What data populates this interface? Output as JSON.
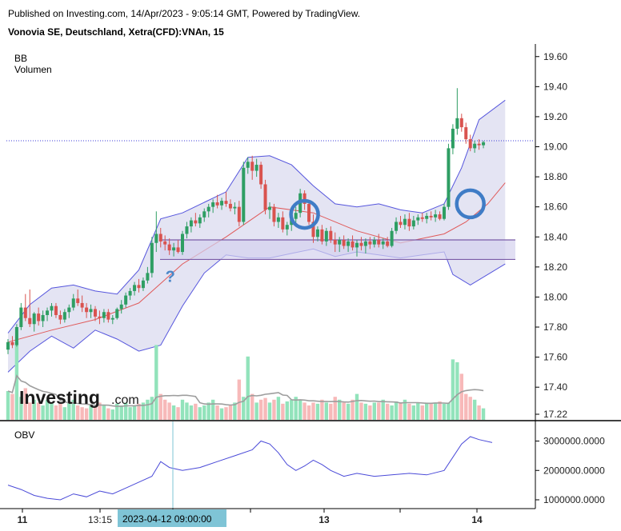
{
  "header": {
    "published": "Published on Investing.com, 14/Apr/2023 - 9:05:14 GMT, Powered by TradingView.",
    "symbol": "Vonovia SE, Deutschland, Xetra(CFD):VNAn, 15"
  },
  "colors": {
    "up": "#2e9e63",
    "down": "#d9534f",
    "band_fill": "#e4e4f3",
    "band_line": "#5555dd",
    "basis_line": "#e05a5a",
    "vol_up": "#92e3bb",
    "vol_down": "#f7b9b9",
    "vol_ma": "#9e9e9e",
    "obv_line": "#4a4ad8",
    "zone_fill": "#d4d2ee",
    "zone_line": "#7b5ca8",
    "circle": "#3f7cc6",
    "crosshair_bg": "#7fc4d6"
  },
  "logo": {
    "main": "Investing",
    "sub": ".com"
  },
  "annotations": {
    "question": "?"
  },
  "chart_data": [
    {
      "type": "candlestick",
      "indicators": [
        "BB",
        "Volumen"
      ],
      "y_ticks": [
        "19.60",
        "19.40",
        "19.20",
        "19.00",
        "18.80",
        "18.60",
        "18.40",
        "18.20",
        "18.00",
        "17.80",
        "17.60",
        "17.40",
        "17.22"
      ],
      "ylim": [
        17.22,
        19.62
      ],
      "x_ticks": [
        "11",
        "13:15",
        "13",
        "14"
      ],
      "crosshair_label": "2023-04-12 09:00:00",
      "last_price": 19.04,
      "zone": [
        18.25,
        18.38
      ],
      "ohlc": [
        [
          17.65,
          17.72,
          17.62,
          17.7
        ],
        [
          17.7,
          17.74,
          17.66,
          17.68
        ],
        [
          17.68,
          17.82,
          17.67,
          17.8
        ],
        [
          17.8,
          17.96,
          17.78,
          17.93
        ],
        [
          17.93,
          18.02,
          17.84,
          17.86
        ],
        [
          17.86,
          18.05,
          17.8,
          17.82
        ],
        [
          17.82,
          17.9,
          17.77,
          17.89
        ],
        [
          17.89,
          17.93,
          17.81,
          17.84
        ],
        [
          17.84,
          17.91,
          17.8,
          17.88
        ],
        [
          17.88,
          17.93,
          17.84,
          17.91
        ],
        [
          17.91,
          17.96,
          17.87,
          17.94
        ],
        [
          17.94,
          17.96,
          17.86,
          17.88
        ],
        [
          17.88,
          17.91,
          17.82,
          17.85
        ],
        [
          17.85,
          17.92,
          17.83,
          17.9
        ],
        [
          17.9,
          17.95,
          17.86,
          17.93
        ],
        [
          17.93,
          18.02,
          17.91,
          17.99
        ],
        [
          17.99,
          18.05,
          17.94,
          17.96
        ],
        [
          17.96,
          18.01,
          17.9,
          17.93
        ],
        [
          17.93,
          17.96,
          17.86,
          17.9
        ],
        [
          17.9,
          17.95,
          17.86,
          17.92
        ],
        [
          17.92,
          17.94,
          17.84,
          17.87
        ],
        [
          17.87,
          17.91,
          17.82,
          17.86
        ],
        [
          17.86,
          17.92,
          17.83,
          17.9
        ],
        [
          17.9,
          17.92,
          17.83,
          17.85
        ],
        [
          17.85,
          17.88,
          17.82,
          17.86
        ],
        [
          17.86,
          17.93,
          17.85,
          17.92
        ],
        [
          17.92,
          17.98,
          17.89,
          17.95
        ],
        [
          17.95,
          18.03,
          17.93,
          18.01
        ],
        [
          18.01,
          18.06,
          17.98,
          18.04
        ],
        [
          18.04,
          18.1,
          18.01,
          18.08
        ],
        [
          18.08,
          18.12,
          18.03,
          18.06
        ],
        [
          18.06,
          18.13,
          18.04,
          18.11
        ],
        [
          18.11,
          18.2,
          18.09,
          18.16
        ],
        [
          18.16,
          18.4,
          18.13,
          18.36
        ],
        [
          18.36,
          18.57,
          18.3,
          18.42
        ],
        [
          18.42,
          18.46,
          18.33,
          18.37
        ],
        [
          18.37,
          18.41,
          18.31,
          18.35
        ],
        [
          18.35,
          18.39,
          18.28,
          18.31
        ],
        [
          18.31,
          18.36,
          18.27,
          18.33
        ],
        [
          18.33,
          18.38,
          18.29,
          18.3
        ],
        [
          18.3,
          18.44,
          18.28,
          18.42
        ],
        [
          18.42,
          18.5,
          18.39,
          18.47
        ],
        [
          18.47,
          18.53,
          18.43,
          18.51
        ],
        [
          18.51,
          18.56,
          18.47,
          18.49
        ],
        [
          18.49,
          18.55,
          18.46,
          18.53
        ],
        [
          18.53,
          18.59,
          18.5,
          18.57
        ],
        [
          18.57,
          18.62,
          18.53,
          18.6
        ],
        [
          18.6,
          18.65,
          18.56,
          18.63
        ],
        [
          18.63,
          18.68,
          18.59,
          18.61
        ],
        [
          18.61,
          18.66,
          18.58,
          18.64
        ],
        [
          18.64,
          18.7,
          18.6,
          18.62
        ],
        [
          18.62,
          18.65,
          18.57,
          18.59
        ],
        [
          18.59,
          18.63,
          18.55,
          18.6
        ],
        [
          18.6,
          18.64,
          18.47,
          18.5
        ],
        [
          18.5,
          18.9,
          18.48,
          18.86
        ],
        [
          18.86,
          18.93,
          18.82,
          18.9
        ],
        [
          18.9,
          18.94,
          18.78,
          18.84
        ],
        [
          18.84,
          18.92,
          18.8,
          18.88
        ],
        [
          18.88,
          18.9,
          18.72,
          18.75
        ],
        [
          18.75,
          18.78,
          18.55,
          18.58
        ],
        [
          18.58,
          18.63,
          18.52,
          18.6
        ],
        [
          18.6,
          18.62,
          18.47,
          18.5
        ],
        [
          18.5,
          18.56,
          18.46,
          18.53
        ],
        [
          18.53,
          18.57,
          18.43,
          18.45
        ],
        [
          18.45,
          18.5,
          18.41,
          18.48
        ],
        [
          18.48,
          18.55,
          18.44,
          18.52
        ],
        [
          18.52,
          18.6,
          18.49,
          18.56
        ],
        [
          18.56,
          18.72,
          18.53,
          18.69
        ],
        [
          18.69,
          18.71,
          18.58,
          18.62
        ],
        [
          18.62,
          18.64,
          18.48,
          18.5
        ],
        [
          18.5,
          18.55,
          18.36,
          18.4
        ],
        [
          18.4,
          18.47,
          18.37,
          18.45
        ],
        [
          18.45,
          18.48,
          18.35,
          18.37
        ],
        [
          18.37,
          18.46,
          18.34,
          18.44
        ],
        [
          18.44,
          18.47,
          18.36,
          18.38
        ],
        [
          18.38,
          18.43,
          18.3,
          18.35
        ],
        [
          18.35,
          18.4,
          18.3,
          18.38
        ],
        [
          18.38,
          18.41,
          18.32,
          18.34
        ],
        [
          18.34,
          18.39,
          18.3,
          18.37
        ],
        [
          18.37,
          18.41,
          18.31,
          18.33
        ],
        [
          18.33,
          18.38,
          18.27,
          18.36
        ],
        [
          18.36,
          18.4,
          18.31,
          18.34
        ],
        [
          18.34,
          18.39,
          18.29,
          18.37
        ],
        [
          18.37,
          18.4,
          18.32,
          18.35
        ],
        [
          18.35,
          18.4,
          18.33,
          18.38
        ],
        [
          18.38,
          18.42,
          18.33,
          18.35
        ],
        [
          18.35,
          18.39,
          18.32,
          18.37
        ],
        [
          18.37,
          18.4,
          18.33,
          18.34
        ],
        [
          18.34,
          18.46,
          18.33,
          18.44
        ],
        [
          18.44,
          18.53,
          18.42,
          18.5
        ],
        [
          18.5,
          18.54,
          18.46,
          18.48
        ],
        [
          18.48,
          18.55,
          18.45,
          18.52
        ],
        [
          18.52,
          18.56,
          18.44,
          18.47
        ],
        [
          18.47,
          18.54,
          18.45,
          18.51
        ],
        [
          18.51,
          18.55,
          18.48,
          18.53
        ],
        [
          18.53,
          18.56,
          18.5,
          18.52
        ],
        [
          18.52,
          18.56,
          18.49,
          18.54
        ],
        [
          18.54,
          18.57,
          18.51,
          18.53
        ],
        [
          18.53,
          18.58,
          18.5,
          18.55
        ],
        [
          18.55,
          18.57,
          18.51,
          18.52
        ],
        [
          18.52,
          18.62,
          18.51,
          18.6
        ],
        [
          18.6,
          19.02,
          18.58,
          18.99
        ],
        [
          18.99,
          19.15,
          18.95,
          19.12
        ],
        [
          19.12,
          19.39,
          19.08,
          19.19
        ],
        [
          19.19,
          19.22,
          19.1,
          19.13
        ],
        [
          19.13,
          19.16,
          19.02,
          19.05
        ],
        [
          19.05,
          19.08,
          18.97,
          18.99
        ],
        [
          18.99,
          19.04,
          18.96,
          19.02
        ],
        [
          19.02,
          19.05,
          18.98,
          19.01
        ],
        [
          19.01,
          19.04,
          18.99,
          19.03
        ]
      ],
      "volume": [
        50,
        45,
        135,
        40,
        55,
        30,
        35,
        30,
        25,
        35,
        30,
        25,
        28,
        22,
        30,
        35,
        25,
        22,
        20,
        25,
        22,
        30,
        25,
        20,
        18,
        28,
        25,
        30,
        22,
        25,
        28,
        30,
        35,
        40,
        130,
        45,
        35,
        30,
        25,
        22,
        35,
        30,
        25,
        28,
        22,
        25,
        30,
        35,
        25,
        20,
        22,
        25,
        30,
        70,
        40,
        110,
        45,
        30,
        35,
        38,
        30,
        35,
        40,
        28,
        32,
        35,
        40,
        35,
        30,
        25,
        30,
        28,
        35,
        30,
        28,
        40,
        35,
        30,
        28,
        35,
        45,
        30,
        28,
        25,
        30,
        30,
        35,
        28,
        25,
        32,
        30,
        35,
        28,
        25,
        30,
        25,
        30,
        28,
        30,
        32,
        28,
        30,
        105,
        100,
        80,
        45,
        40,
        35,
        25,
        20
      ],
      "bb_basis_points": [
        [
          0,
          17.7
        ],
        [
          10,
          17.78
        ],
        [
          20,
          17.85
        ],
        [
          30,
          17.96
        ],
        [
          40,
          18.22
        ],
        [
          50,
          18.4
        ],
        [
          60,
          18.6
        ],
        [
          70,
          18.56
        ],
        [
          80,
          18.44
        ],
        [
          90,
          18.36
        ],
        [
          100,
          18.42
        ],
        [
          105,
          18.5
        ],
        [
          110,
          18.62
        ],
        [
          114,
          18.76
        ]
      ],
      "bb_upper_points": [
        [
          0,
          17.76
        ],
        [
          5,
          17.95
        ],
        [
          10,
          18.06
        ],
        [
          15,
          18.08
        ],
        [
          20,
          18.04
        ],
        [
          25,
          18.02
        ],
        [
          30,
          18.18
        ],
        [
          35,
          18.52
        ],
        [
          40,
          18.56
        ],
        [
          45,
          18.63
        ],
        [
          50,
          18.7
        ],
        [
          55,
          18.93
        ],
        [
          60,
          18.94
        ],
        [
          65,
          18.88
        ],
        [
          70,
          18.74
        ],
        [
          75,
          18.62
        ],
        [
          80,
          18.6
        ],
        [
          85,
          18.62
        ],
        [
          90,
          18.58
        ],
        [
          95,
          18.56
        ],
        [
          100,
          18.62
        ],
        [
          104,
          18.86
        ],
        [
          108,
          19.18
        ],
        [
          114,
          19.31
        ]
      ],
      "bb_lower_points": [
        [
          0,
          17.5
        ],
        [
          5,
          17.64
        ],
        [
          10,
          17.74
        ],
        [
          15,
          17.66
        ],
        [
          20,
          17.78
        ],
        [
          25,
          17.72
        ],
        [
          30,
          17.64
        ],
        [
          35,
          17.68
        ],
        [
          40,
          17.94
        ],
        [
          45,
          18.16
        ],
        [
          50,
          18.28
        ],
        [
          55,
          18.26
        ],
        [
          60,
          18.26
        ],
        [
          65,
          18.29
        ],
        [
          70,
          18.32
        ],
        [
          75,
          18.27
        ],
        [
          80,
          18.3
        ],
        [
          85,
          18.28
        ],
        [
          90,
          18.26
        ],
        [
          95,
          18.28
        ],
        [
          100,
          18.3
        ],
        [
          102,
          18.15
        ],
        [
          106,
          18.08
        ],
        [
          114,
          18.22
        ]
      ],
      "circle_annotations": [
        [
          68,
          18.55
        ],
        [
          106,
          18.62
        ]
      ],
      "question_annotation": [
        37,
        18.25
      ]
    },
    {
      "type": "line",
      "indicator": "OBV",
      "y_ticks": [
        "3000000.0000",
        "2000000.0000",
        "1000000.0000"
      ],
      "ylim": [
        700000,
        3450000
      ],
      "points": [
        [
          0,
          1500000
        ],
        [
          3,
          1350000
        ],
        [
          6,
          1150000
        ],
        [
          9,
          1050000
        ],
        [
          12,
          1000000
        ],
        [
          15,
          1200000
        ],
        [
          18,
          1100000
        ],
        [
          21,
          1300000
        ],
        [
          24,
          1200000
        ],
        [
          27,
          1400000
        ],
        [
          30,
          1600000
        ],
        [
          33,
          1800000
        ],
        [
          35,
          2300000
        ],
        [
          37,
          2100000
        ],
        [
          40,
          2000000
        ],
        [
          44,
          2100000
        ],
        [
          48,
          2300000
        ],
        [
          52,
          2500000
        ],
        [
          56,
          2700000
        ],
        [
          58,
          3000000
        ],
        [
          60,
          2900000
        ],
        [
          62,
          2600000
        ],
        [
          64,
          2200000
        ],
        [
          66,
          2000000
        ],
        [
          68,
          2150000
        ],
        [
          70,
          2350000
        ],
        [
          72,
          2200000
        ],
        [
          74,
          2000000
        ],
        [
          77,
          1800000
        ],
        [
          80,
          1900000
        ],
        [
          84,
          1800000
        ],
        [
          88,
          1850000
        ],
        [
          92,
          1900000
        ],
        [
          96,
          1850000
        ],
        [
          100,
          2000000
        ],
        [
          104,
          2900000
        ],
        [
          106,
          3150000
        ],
        [
          108,
          3050000
        ],
        [
          111,
          2950000
        ]
      ]
    }
  ],
  "obv_label": "OBV"
}
